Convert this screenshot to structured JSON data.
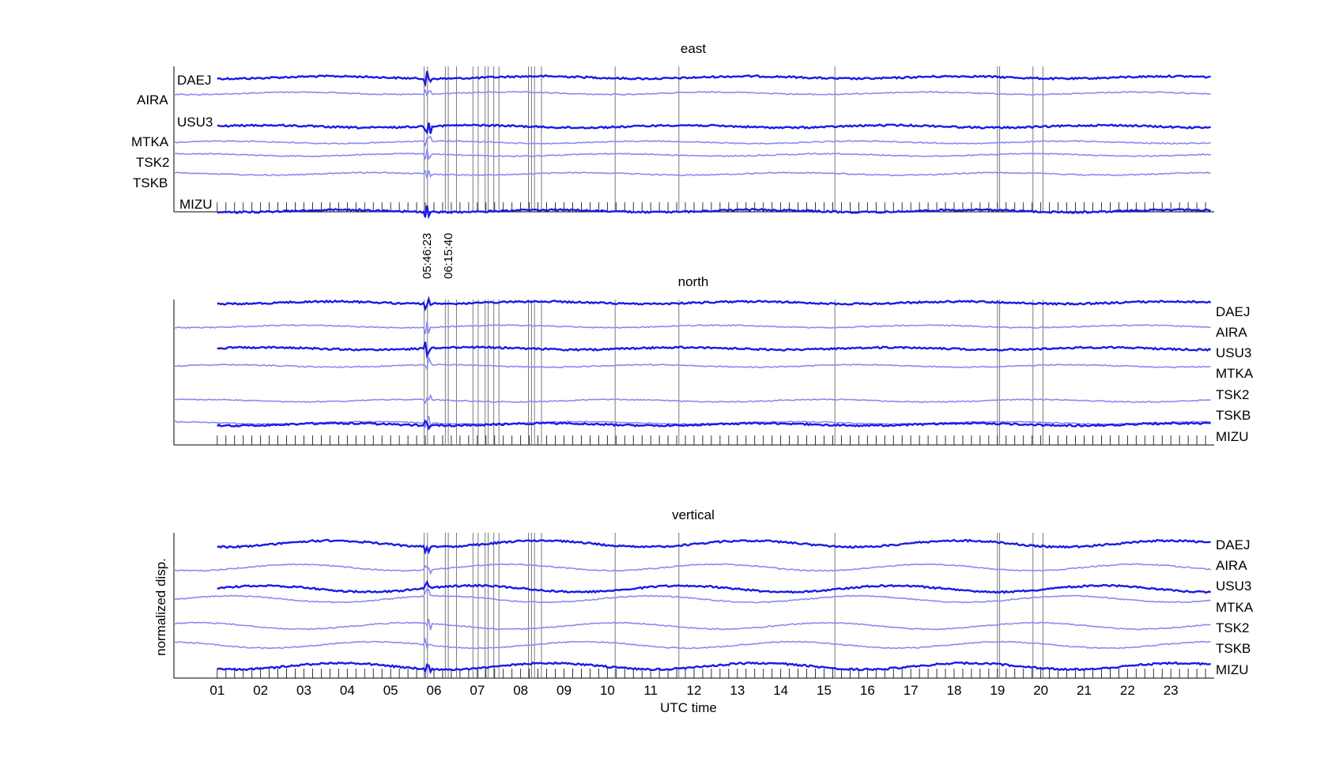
{
  "chart_data": [
    {
      "type": "line",
      "title": "east",
      "stations": [
        "DAEJ",
        "AIRA",
        "USU3",
        "MTKA",
        "TSK2",
        "TSKB",
        "MIZU"
      ],
      "label_side": "left",
      "events": [
        "05:46:23",
        "06:15:40"
      ]
    },
    {
      "type": "line",
      "title": "north",
      "stations": [
        "DAEJ",
        "AIRA",
        "USU3",
        "MTKA",
        "TSK2",
        "TSKB",
        "MIZU"
      ],
      "label_side": "right"
    },
    {
      "type": "line",
      "title": "vertical",
      "ylabel": "normalized disp.",
      "stations": [
        "DAEJ",
        "AIRA",
        "USU3",
        "MTKA",
        "TSK2",
        "TSKB",
        "MIZU"
      ],
      "label_side": "right"
    }
  ],
  "x_axis": {
    "label": "UTC time",
    "ticks": [
      "01",
      "02",
      "03",
      "04",
      "05",
      "06",
      "07",
      "08",
      "09",
      "10",
      "11",
      "12",
      "13",
      "14",
      "15",
      "16",
      "17",
      "18",
      "19",
      "20",
      "21",
      "22",
      "23"
    ],
    "xlim_hours": [
      0,
      24
    ]
  },
  "event_lines_hours": [
    5.773,
    5.85,
    6.262,
    6.33,
    6.52,
    6.9,
    7.02,
    7.18,
    7.25,
    7.38,
    7.5,
    8.18,
    8.25,
    8.32,
    8.48,
    10.18,
    11.65,
    15.25,
    19.0,
    19.05,
    19.82,
    20.05
  ],
  "series_colors": {
    "dark": "#1a1ae6",
    "light": "#8a8af2"
  },
  "station_styles": [
    "dark",
    "light",
    "dark",
    "light",
    "light",
    "light",
    "dark"
  ]
}
